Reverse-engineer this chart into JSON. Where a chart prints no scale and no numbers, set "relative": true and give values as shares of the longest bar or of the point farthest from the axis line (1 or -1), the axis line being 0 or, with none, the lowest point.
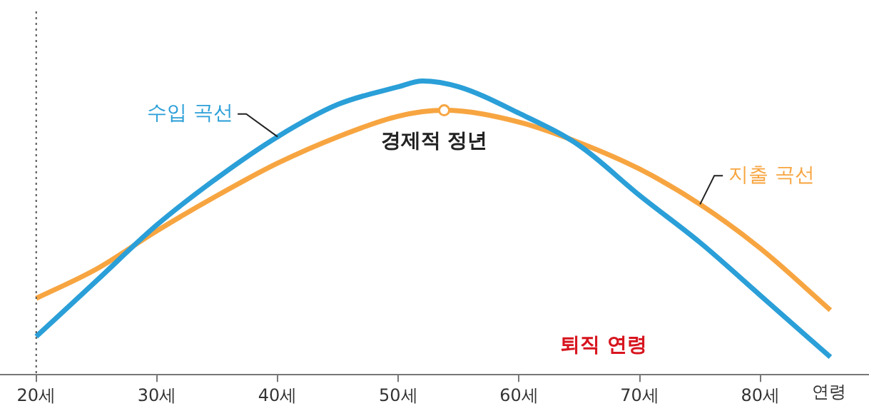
{
  "chart_data": {
    "type": "line",
    "relative": true,
    "xlabel": "연령",
    "xlim": [
      17,
      89
    ],
    "xticks": [
      {
        "value": 20,
        "label": "20세"
      },
      {
        "value": 30,
        "label": "30세"
      },
      {
        "value": 40,
        "label": "40세"
      },
      {
        "value": 50,
        "label": "50세"
      },
      {
        "value": 60,
        "label": "60세"
      },
      {
        "value": 70,
        "label": "70세"
      },
      {
        "value": 80,
        "label": "80세"
      }
    ],
    "series": [
      {
        "name": "수입 곡선",
        "color": "#2a9fd8",
        "x": [
          20,
          25,
          30,
          35,
          40,
          45,
          50,
          52,
          55,
          60,
          65,
          70,
          75,
          80,
          85.8
        ],
        "values": [
          0.13,
          0.32,
          0.51,
          0.67,
          0.81,
          0.92,
          0.98,
          1,
          0.98,
          0.89,
          0.78,
          0.61,
          0.45,
          0.27,
          0.06
        ]
      },
      {
        "name": "지출 곡선",
        "color": "#f7a541",
        "x": [
          20,
          25,
          30,
          35,
          40,
          45,
          50,
          53.8,
          60,
          65,
          70,
          75,
          80,
          85.8
        ],
        "values": [
          0.26,
          0.36,
          0.49,
          0.61,
          0.72,
          0.81,
          0.88,
          0.9,
          0.86,
          0.79,
          0.7,
          0.58,
          0.43,
          0.22
        ]
      }
    ],
    "ref_lines": [
      {
        "axis": "x",
        "value": 20,
        "line_style": "dotted",
        "color": "#555555"
      }
    ],
    "annotations": [
      {
        "text": "경제적 정년",
        "x": 53.8,
        "y": 0.9
      },
      "퇴직 연령"
    ],
    "grid": false,
    "legend": false,
    "marker": "none",
    "line_style": "solid"
  }
}
